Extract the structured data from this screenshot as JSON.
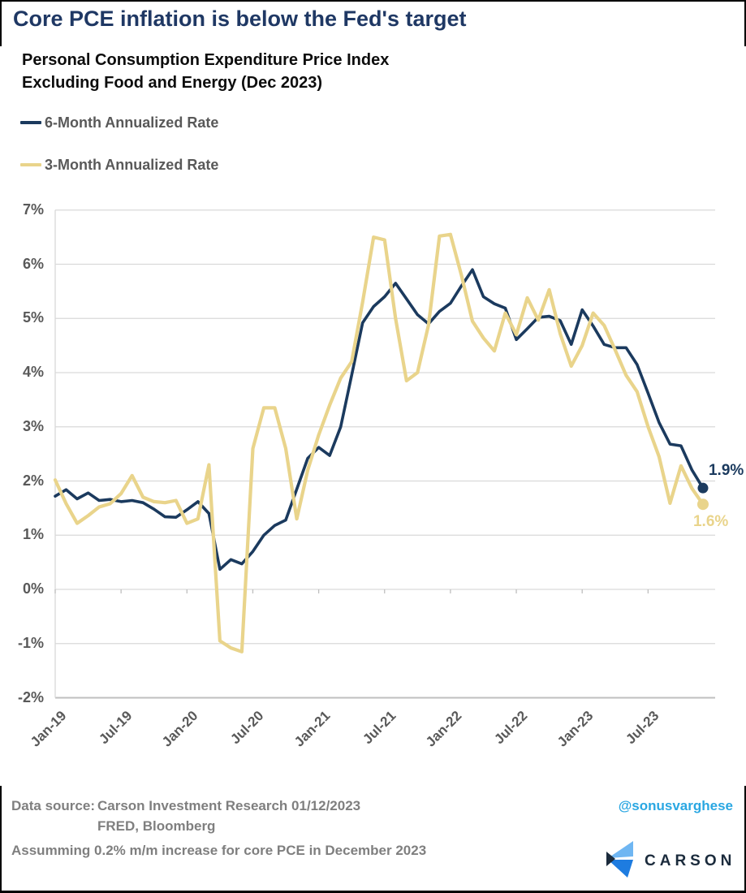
{
  "header": {
    "title": "Core PCE inflation is below the Fed's target"
  },
  "subtitle": {
    "line1": "Personal Consumption Expenditure Price Index",
    "line2": "Excluding Food and Energy (Dec 2023)"
  },
  "legend": [
    {
      "label": "6-Month Annualized Rate",
      "color": "#1b3a5e"
    },
    {
      "label": "3-Month Annualized Rate",
      "color": "#e9d48b"
    }
  ],
  "chart_data": {
    "type": "line",
    "title": "Core PCE inflation is below the Fed's target",
    "x_start": "Jan-2019",
    "x_end": "Dec-2023",
    "frequency": "monthly",
    "x_tick_labels": [
      "Jan-19",
      "Jul-19",
      "Jan-20",
      "Jul-20",
      "Jan-21",
      "Jul-21",
      "Jan-22",
      "Jul-22",
      "Jan-23",
      "Jul-23"
    ],
    "y_tick_labels": [
      "7%",
      "6%",
      "5%",
      "4%",
      "3%",
      "2%",
      "1%",
      "0%",
      "-1%",
      "-2%"
    ],
    "ylim": [
      -2,
      7
    ],
    "grid": "horizontal",
    "legend_position": "top-left",
    "series": [
      {
        "name": "6-Month Annualized Rate",
        "color": "#1b3a5e",
        "end_label": "1.9%",
        "end_value": 1.9,
        "values": [
          1.72,
          1.84,
          1.67,
          1.78,
          1.64,
          1.66,
          1.62,
          1.64,
          1.6,
          1.48,
          1.34,
          1.33,
          1.47,
          1.62,
          1.4,
          0.37,
          0.55,
          0.47,
          0.7,
          1.0,
          1.18,
          1.28,
          1.85,
          2.42,
          2.62,
          2.47,
          3.0,
          3.95,
          4.92,
          5.22,
          5.4,
          5.65,
          5.36,
          5.07,
          4.9,
          5.13,
          5.28,
          5.6,
          5.9,
          5.4,
          5.27,
          5.19,
          4.61,
          4.81,
          5.02,
          5.04,
          4.96,
          4.52,
          5.16,
          4.86,
          4.52,
          4.46,
          4.46,
          4.15,
          3.62,
          3.08,
          2.68,
          2.65,
          2.2,
          1.87
        ]
      },
      {
        "name": "3-Month Annualized Rate",
        "color": "#e9d48b",
        "end_label": "1.6%",
        "end_value": 1.6,
        "values": [
          2.02,
          1.58,
          1.22,
          1.36,
          1.52,
          1.58,
          1.77,
          2.1,
          1.7,
          1.62,
          1.6,
          1.64,
          1.22,
          1.3,
          2.3,
          -0.95,
          -1.08,
          -1.15,
          2.6,
          3.35,
          3.35,
          2.6,
          1.3,
          2.2,
          2.85,
          3.4,
          3.9,
          4.2,
          5.3,
          6.5,
          6.45,
          5.0,
          3.85,
          4.0,
          4.88,
          6.52,
          6.55,
          5.8,
          4.95,
          4.64,
          4.4,
          5.1,
          4.7,
          5.38,
          4.97,
          5.53,
          4.72,
          4.12,
          4.5,
          5.1,
          4.87,
          4.42,
          3.95,
          3.65,
          3.0,
          2.45,
          1.59,
          2.28,
          1.86,
          1.57
        ]
      }
    ]
  },
  "footer": {
    "data_source_label": "Data source:",
    "source_line1": "Carson Investment Research  01/12/2023",
    "source_line2": "FRED, Bloomberg",
    "assumption": "Assumming 0.2% m/m increase for core PCE in December 2023",
    "handle": "@sonusvarghese",
    "logo_text": "CARSON"
  },
  "colors": {
    "title": "#1f3864",
    "navy_line": "#1b3a5e",
    "tan_line": "#e9d48b",
    "text_gray": "#595959",
    "footer_gray": "#7f7f7f",
    "handle_blue": "#2aa7e2",
    "gridline": "#d9d9d9",
    "axis": "#bfbfbf",
    "logo_navy": "#1b2b3c",
    "logo_light_blue": "#6fb6f2",
    "logo_mid_blue": "#1e7ce0"
  }
}
